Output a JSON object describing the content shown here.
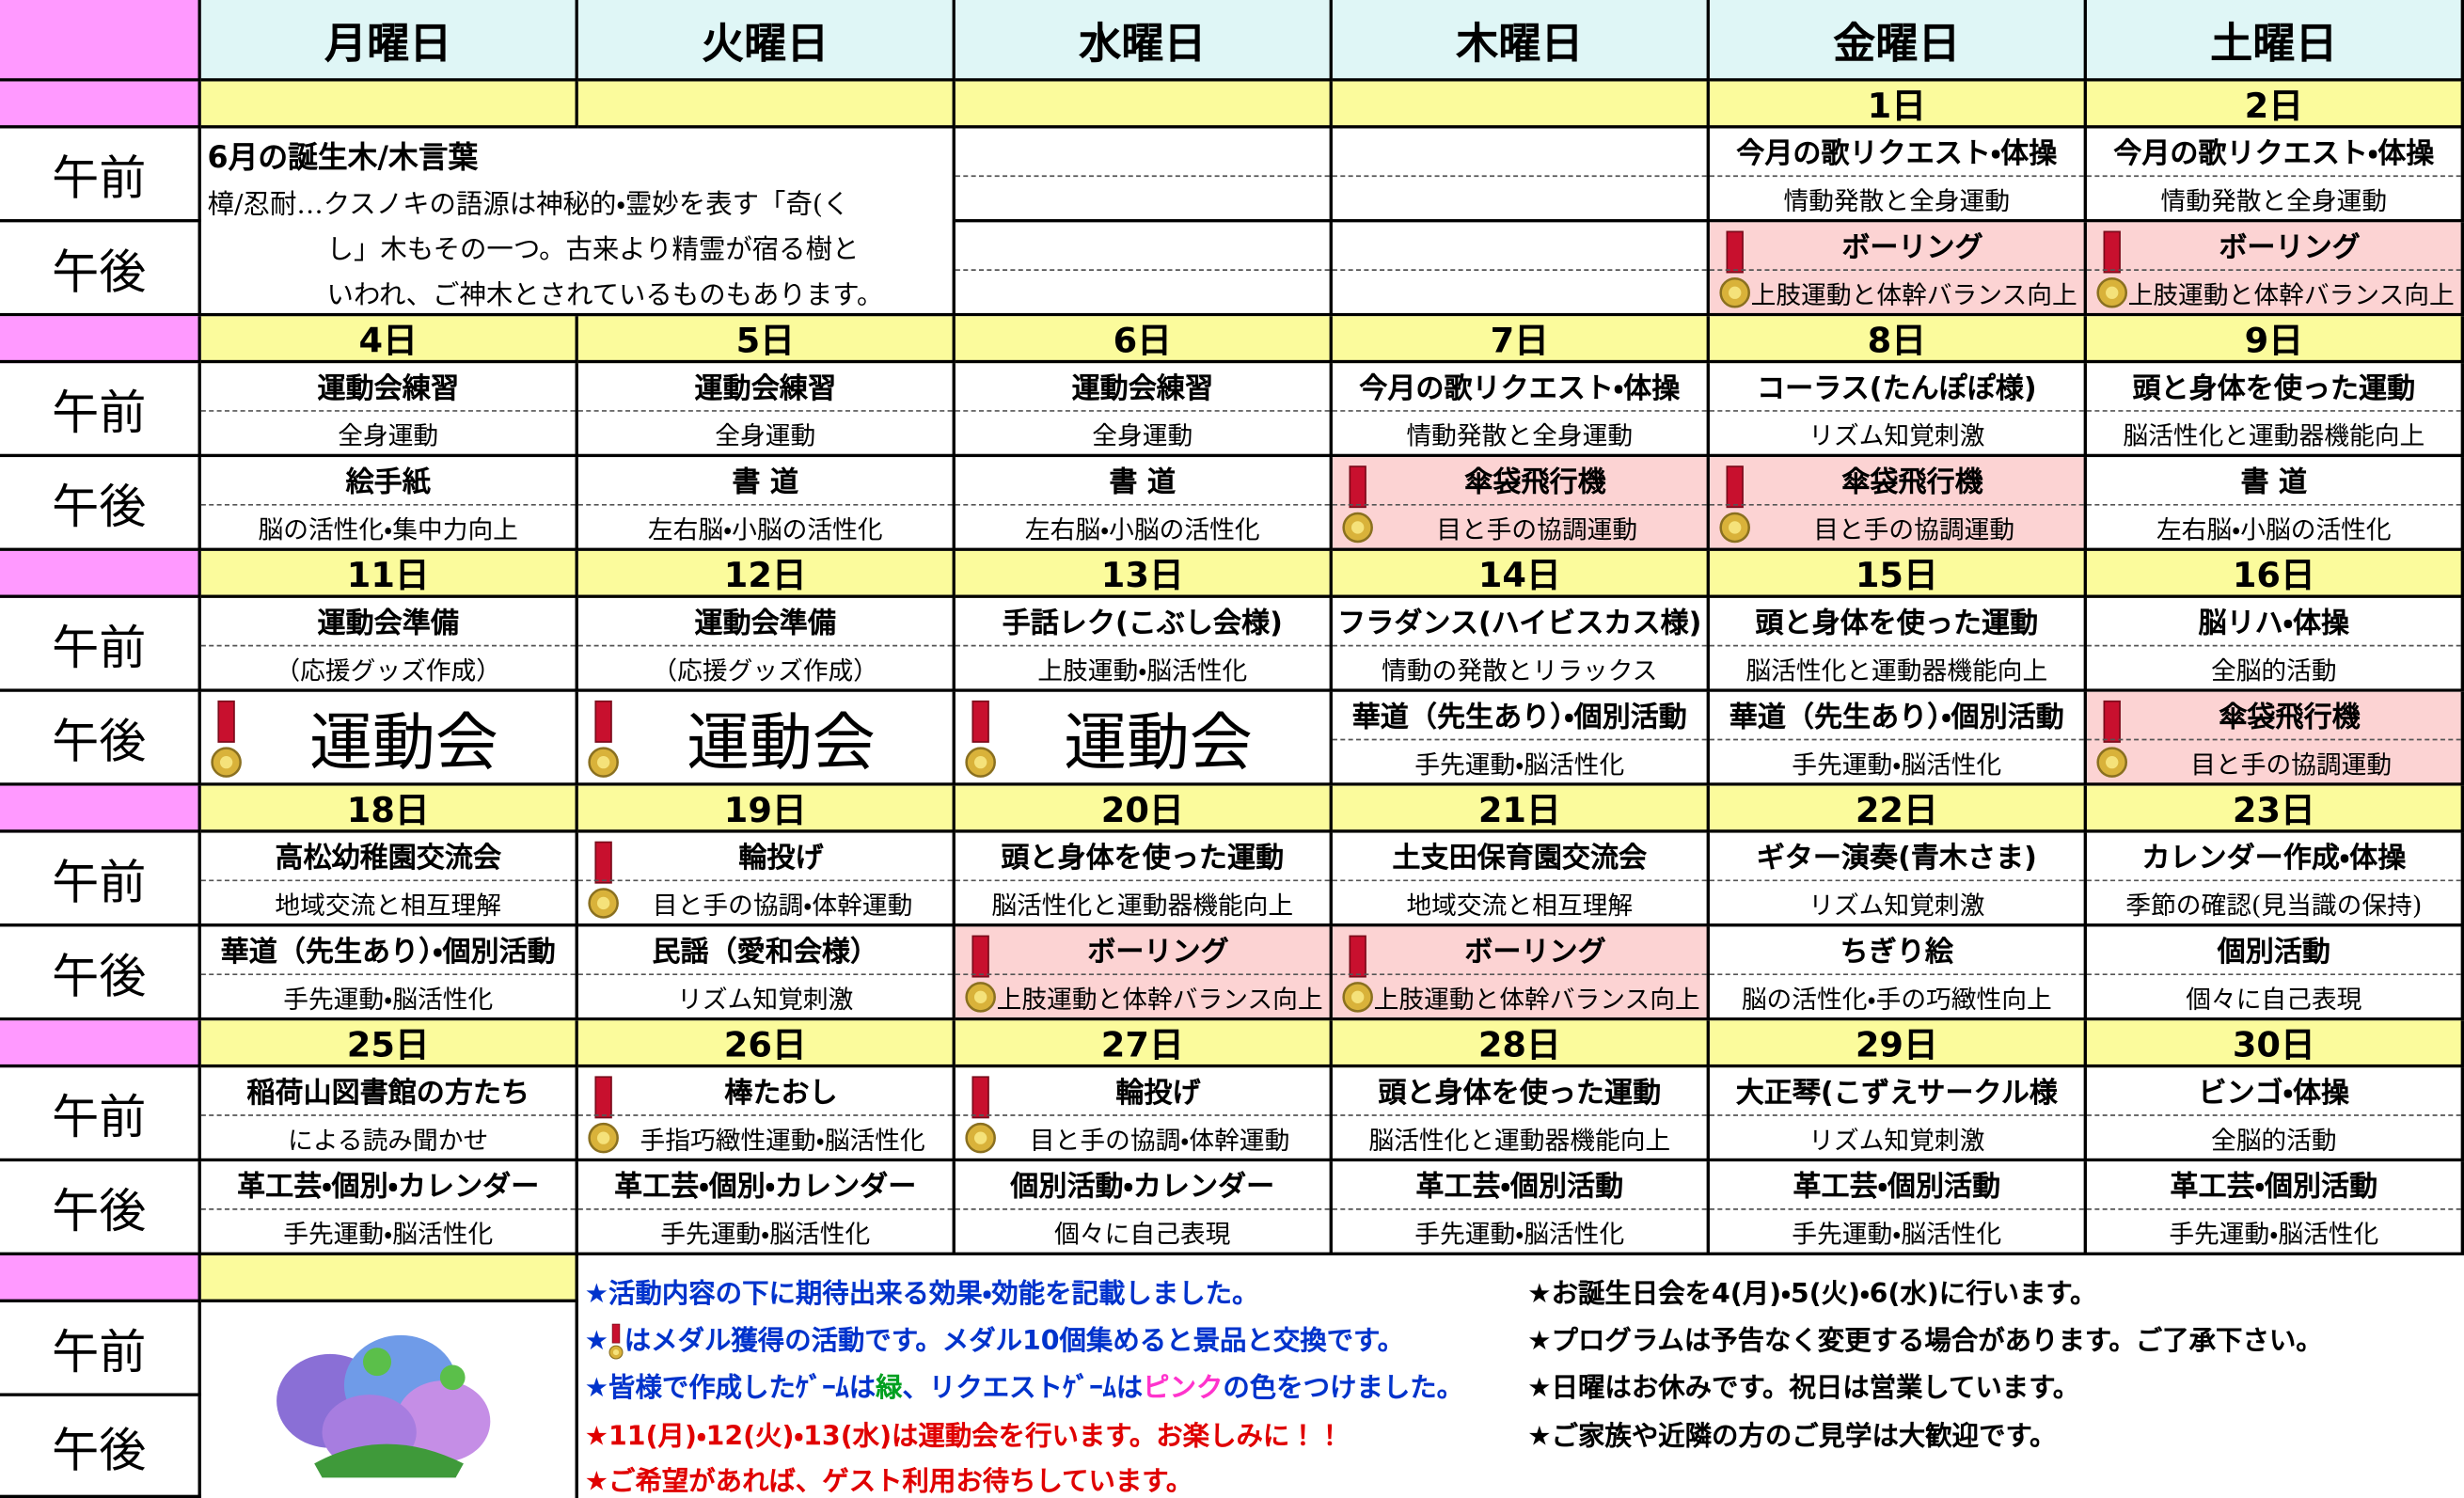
{
  "header": {
    "days": [
      "月曜日",
      "火曜日",
      "水曜日",
      "木曜日",
      "金曜日",
      "土曜日"
    ]
  },
  "labels": {
    "am": "午前",
    "pm": "午後"
  },
  "birthday_note": {
    "title": "6月の誕生木/木言葉",
    "lines": [
      "樟/忍耐…クスノキの語源は神秘的・霊妙を表す「奇(く",
      "し」木もその一つ。古来より精霊が宿る樹と",
      "いわれ、ご神木とされているものもあります。"
    ]
  },
  "weeks": [
    {
      "dates": [
        null,
        null,
        null,
        null,
        "1日",
        "2日"
      ],
      "am": [
        null,
        null,
        null,
        null,
        {
          "title": "今月の歌リクエスト・体操",
          "sub": "情動発散と全身運動"
        },
        {
          "title": "今月の歌リクエスト・体操",
          "sub": "情動発散と全身運動"
        }
      ],
      "pm": [
        null,
        null,
        null,
        null,
        {
          "title": "ボーリング",
          "sub": "上肢運動と体幹バランス向上",
          "medal": true,
          "pink": true
        },
        {
          "title": "ボーリング",
          "sub": "上肢運動と体幹バランス向上",
          "medal": true,
          "pink": true
        }
      ]
    },
    {
      "dates": [
        "4日",
        "5日",
        "6日",
        "7日",
        "8日",
        "9日"
      ],
      "am": [
        {
          "title": "運動会練習",
          "sub": "全身運動"
        },
        {
          "title": "運動会練習",
          "sub": "全身運動"
        },
        {
          "title": "運動会練習",
          "sub": "全身運動"
        },
        {
          "title": "今月の歌リクエスト・体操",
          "sub": "情動発散と全身運動"
        },
        {
          "title": "コーラス(たんぽぽ様)",
          "sub": "リズム知覚刺激"
        },
        {
          "title": "頭と身体を使った運動",
          "sub": "脳活性化と運動器機能向上"
        }
      ],
      "pm": [
        {
          "title": "絵手紙",
          "sub": "脳の活性化・集中力向上"
        },
        {
          "title": "書 道",
          "sub": "左右脳・小脳の活性化"
        },
        {
          "title": "書 道",
          "sub": "左右脳・小脳の活性化"
        },
        {
          "title": "傘袋飛行機",
          "sub": "目と手の協調運動",
          "medal": true,
          "pink": true
        },
        {
          "title": "傘袋飛行機",
          "sub": "目と手の協調運動",
          "medal": true,
          "pink": true
        },
        {
          "title": "書 道",
          "sub": "左右脳・小脳の活性化"
        }
      ]
    },
    {
      "dates": [
        "11日",
        "12日",
        "13日",
        "14日",
        "15日",
        "16日"
      ],
      "am": [
        {
          "title": "運動会準備",
          "sub": "（応援グッズ作成）"
        },
        {
          "title": "運動会準備",
          "sub": "（応援グッズ作成）"
        },
        {
          "title": "手話レク(こぶし会様)",
          "sub": "上肢運動・脳活性化"
        },
        {
          "title": "フラダンス(ハイビスカス様)",
          "sub": "情動の発散とリラックス"
        },
        {
          "title": "頭と身体を使った運動",
          "sub": "脳活性化と運動器機能向上"
        },
        {
          "title": "脳リハ・体操",
          "sub": "全脳的活動"
        }
      ],
      "pm": [
        {
          "title": "運動会",
          "medal": true
        },
        {
          "title": "運動会",
          "medal": true
        },
        {
          "title": "運動会",
          "medal": true
        },
        {
          "title": "華道（先生あり）・個別活動",
          "sub": "手先運動・脳活性化"
        },
        {
          "title": "華道（先生あり）・個別活動",
          "sub": "手先運動・脳活性化"
        },
        {
          "title": "傘袋飛行機",
          "sub": "目と手の協調運動",
          "medal": true,
          "pink": true
        }
      ]
    },
    {
      "dates": [
        "18日",
        "19日",
        "20日",
        "21日",
        "22日",
        "23日"
      ],
      "am": [
        {
          "title": "高松幼稚園交流会",
          "sub": "地域交流と相互理解"
        },
        {
          "title": "輪投げ",
          "sub": "目と手の協調・体幹運動",
          "medal": true
        },
        {
          "title": "頭と身体を使った運動",
          "sub": "脳活性化と運動器機能向上"
        },
        {
          "title": "土支田保育園交流会",
          "sub": "地域交流と相互理解"
        },
        {
          "title": "ギター演奏(青木さま)",
          "sub": "リズム知覚刺激"
        },
        {
          "title": "カレンダー作成・体操",
          "sub": "季節の確認(見当識の保持)"
        }
      ],
      "pm": [
        {
          "title": "華道（先生あり）・個別活動",
          "sub": "手先運動・脳活性化"
        },
        {
          "title": "民謡（愛和会様）",
          "sub": "リズム知覚刺激"
        },
        {
          "title": "ボーリング",
          "sub": "上肢運動と体幹バランス向上",
          "medal": true,
          "pink": true
        },
        {
          "title": "ボーリング",
          "sub": "上肢運動と体幹バランス向上",
          "medal": true,
          "pink": true
        },
        {
          "title": "ちぎり絵",
          "sub": "脳の活性化・手の巧緻性向上"
        },
        {
          "title": "個別活動",
          "sub": "個々に自己表現"
        }
      ]
    },
    {
      "dates": [
        "25日",
        "26日",
        "27日",
        "28日",
        "29日",
        "30日"
      ],
      "am": [
        {
          "title": "稲荷山図書館の方たち",
          "sub": "による読み聞かせ"
        },
        {
          "title": "棒たおし",
          "sub": "手指巧緻性運動・脳活性化",
          "medal": true
        },
        {
          "title": "輪投げ",
          "sub": "目と手の協調・体幹運動",
          "medal": true
        },
        {
          "title": "頭と身体を使った運動",
          "sub": "脳活性化と運動器機能向上"
        },
        {
          "title": "大正琴(こずえサークル様",
          "sub": "リズム知覚刺激"
        },
        {
          "title": "ビンゴ・体操",
          "sub": "全脳的活動"
        }
      ],
      "pm": [
        {
          "title": "革工芸・個別・カレンダー",
          "sub": "手先運動・脳活性化"
        },
        {
          "title": "革工芸・個別・カレンダー",
          "sub": "手先運動・脳活性化"
        },
        {
          "title": "個別活動・カレンダー",
          "sub": "個々に自己表現"
        },
        {
          "title": "革工芸・個別活動",
          "sub": "手先運動・脳活性化"
        },
        {
          "title": "革工芸・個別活動",
          "sub": "手先運動・脳活性化"
        },
        {
          "title": "革工芸・個別活動",
          "sub": "手先運動・脳活性化"
        }
      ]
    }
  ],
  "notes": {
    "left": [
      [
        "★活動内容の下に期待出来る効果・効能を記載しました。"
      ],
      [
        "★",
        "はメダル獲得の活動です。メダル10個集めると景品と交換です。"
      ],
      [
        "★皆様で作成したｹﾞｰﾑは",
        "緑",
        "、リクエストｹﾞｰﾑは",
        "ピンク",
        "の色をつけました。"
      ],
      [
        "★11(月)・12(火)・13(水)は運動会を行います。お楽しみに！！"
      ],
      [
        "★ご希望があれば、ゲスト利用お待ちしています。"
      ]
    ],
    "right": [
      "★お誕生日会を4(月)・5(火)・6(水)に行います。",
      "★プログラムは予告なく変更する場合があります。ご了承下さい。",
      "★日曜はお休みです。祝日は営業しています。",
      "★ご家族や近隣の方のご見学は大歓迎です。"
    ]
  }
}
